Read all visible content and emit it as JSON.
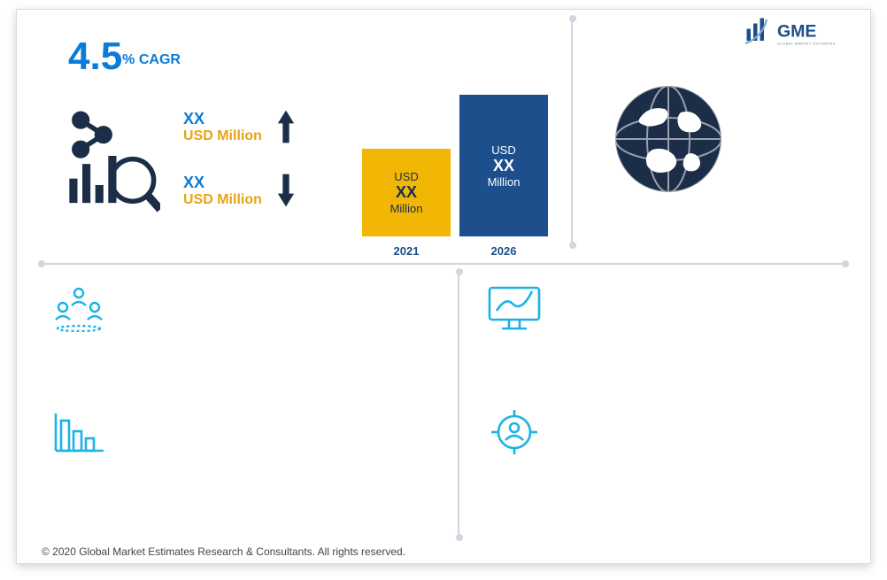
{
  "colors": {
    "accent_blue": "#0b7bd6",
    "accent_amber": "#e8a316",
    "bar_left": "#f2b705",
    "bar_right": "#1c4f8b",
    "dark": "#1c2d47",
    "icon_cyan": "#1bb3e6",
    "divider": "#cfd6dd",
    "frame_border": "#d9d9d9",
    "background": "#ffffff"
  },
  "logo": {
    "text": "GME",
    "subtext": "GLOBAL MARKET ESTIMATES"
  },
  "cagr": {
    "value": "4.5",
    "label": "% CAGR"
  },
  "updown": {
    "up": {
      "xx": "XX",
      "usd": "USD Million"
    },
    "down": {
      "xx": "XX",
      "usd": "USD Million"
    }
  },
  "chart": {
    "type": "bar",
    "categories": [
      "2021",
      "2026"
    ],
    "bars": [
      {
        "height_pct": 62,
        "bg": "#f2b705",
        "text_color": "#1c2d47",
        "usd": "USD",
        "xx": "XX",
        "unit": "Million"
      },
      {
        "height_pct": 100,
        "bg": "#1c4f8b",
        "text_color": "#ffffff",
        "usd": "USD",
        "xx": "XX",
        "unit": "Million"
      }
    ],
    "year_label_color": "#1c4f8b",
    "year_label_fontsize": 13
  },
  "region": {
    "text": ""
  },
  "cells": {
    "a": {
      "text": ""
    },
    "b": {
      "text": ""
    },
    "c": {
      "text": ""
    },
    "d": {
      "text": ""
    }
  },
  "copyright": "© 2020 Global Market Estimates Research & Consultants. All rights reserved."
}
